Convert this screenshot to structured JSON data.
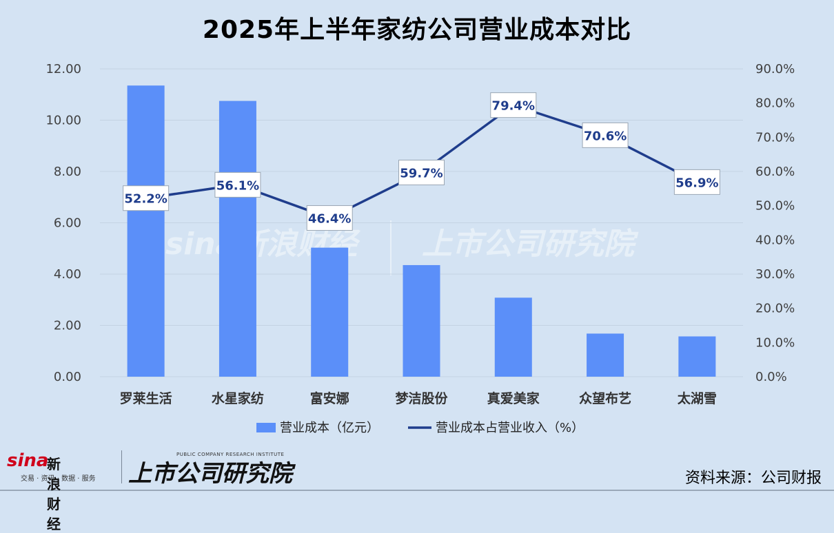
{
  "title": "2025年上半年家纺公司营业成本对比",
  "source": "资料来源：公司财报",
  "logo": {
    "sina_word": "sina",
    "sina_cn": "新浪财经",
    "sina_sub": "交易 · 资讯 · 数据 · 服务",
    "institute_en": "PUBLIC COMPANY RESEARCH INSTITUTE",
    "institute_cn": "上市公司研究院"
  },
  "watermark": {
    "left": "sina新浪财经",
    "right": "上市公司研究院"
  },
  "colors": {
    "bar": "#5b8ff9",
    "line": "#1f3d8c",
    "grid": "#c4d3e3",
    "axis_text": "#404040"
  },
  "chart_data": {
    "type": "bar+line",
    "categories": [
      "罗莱生活",
      "水星家纺",
      "富安娜",
      "梦洁股份",
      "真爱美家",
      "众望布艺",
      "太湖雪"
    ],
    "series": [
      {
        "name": "营业成本（亿元）",
        "type": "bar",
        "axis": "left",
        "values": [
          11.35,
          10.75,
          5.03,
          4.35,
          3.08,
          1.68,
          1.57
        ]
      },
      {
        "name": "营业成本占营业收入（%）",
        "type": "line",
        "axis": "right",
        "values": [
          52.2,
          56.1,
          46.4,
          59.7,
          79.4,
          70.6,
          56.9
        ],
        "labels": [
          "52.2%",
          "56.1%",
          "46.4%",
          "59.7%",
          "79.4%",
          "70.6%",
          "56.9%"
        ]
      }
    ],
    "y_left": {
      "min": 0,
      "max": 12,
      "step": 2,
      "ticks": [
        "0.00",
        "2.00",
        "4.00",
        "6.00",
        "8.00",
        "10.00",
        "12.00"
      ]
    },
    "y_right": {
      "min": 0,
      "max": 90,
      "step": 10,
      "ticks": [
        "0.0%",
        "10.0%",
        "20.0%",
        "30.0%",
        "40.0%",
        "50.0%",
        "60.0%",
        "70.0%",
        "80.0%",
        "90.0%"
      ]
    },
    "grid": true,
    "legend_position": "bottom"
  }
}
